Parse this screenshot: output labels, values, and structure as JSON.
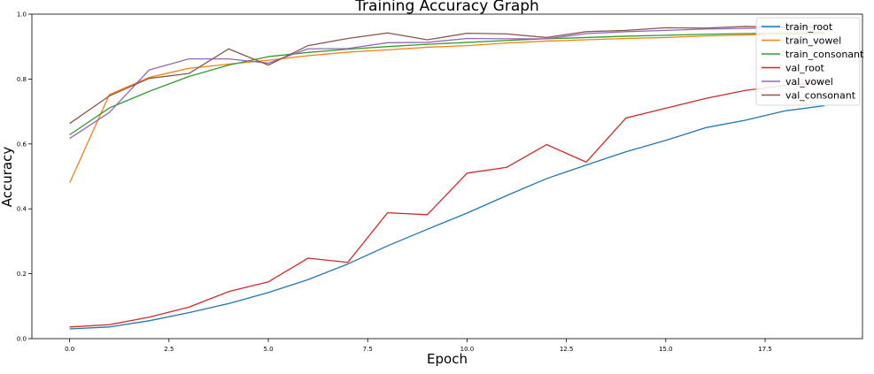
{
  "chart_data": {
    "type": "line",
    "title": "Training Accuracy Graph",
    "xlabel": "Epoch",
    "ylabel": "Accuracy",
    "xlim": [
      -0.95,
      19.95
    ],
    "ylim": [
      0.0,
      1.0
    ],
    "xticks": [
      0.0,
      2.5,
      5.0,
      7.5,
      10.0,
      12.5,
      15.0,
      17.5
    ],
    "xtick_labels": [
      "0.0",
      "2.5",
      "5.0",
      "7.5",
      "10.0",
      "12.5",
      "15.0",
      "17.5"
    ],
    "yticks": [
      0.0,
      0.2,
      0.4,
      0.6,
      0.8,
      1.0
    ],
    "ytick_labels": [
      "0.0",
      "0.2",
      "0.4",
      "0.6",
      "0.8",
      "1.0"
    ],
    "grid": false,
    "legend_position": "top-right",
    "x": [
      0,
      1,
      2,
      3,
      4,
      5,
      6,
      7,
      8,
      9,
      10,
      11,
      12,
      13,
      14,
      15,
      16,
      17,
      18,
      19
    ],
    "series": [
      {
        "name": "train_root",
        "color": "#1f77b4",
        "values": [
          0.03,
          0.036,
          0.055,
          0.08,
          0.108,
          0.142,
          0.182,
          0.23,
          0.286,
          0.337,
          0.387,
          0.441,
          0.493,
          0.535,
          0.576,
          0.611,
          0.65,
          0.673,
          0.702,
          0.718
        ]
      },
      {
        "name": "train_vowel",
        "color": "#ff7f0e",
        "values": [
          0.48,
          0.752,
          0.805,
          0.833,
          0.846,
          0.858,
          0.872,
          0.883,
          0.89,
          0.898,
          0.903,
          0.911,
          0.917,
          0.921,
          0.925,
          0.928,
          0.933,
          0.936,
          0.938,
          0.94
        ]
      },
      {
        "name": "train_consonant",
        "color": "#2ca02c",
        "values": [
          0.628,
          0.711,
          0.762,
          0.808,
          0.843,
          0.869,
          0.882,
          0.892,
          0.9,
          0.907,
          0.913,
          0.919,
          0.924,
          0.928,
          0.932,
          0.935,
          0.938,
          0.94,
          0.942,
          0.943
        ]
      },
      {
        "name": "val_root",
        "color": "#d62728",
        "values": [
          0.036,
          0.043,
          0.066,
          0.097,
          0.145,
          0.175,
          0.248,
          0.235,
          0.388,
          0.382,
          0.51,
          0.528,
          0.598,
          0.544,
          0.68,
          0.71,
          0.74,
          0.765,
          0.78,
          0.79
        ]
      },
      {
        "name": "val_vowel",
        "color": "#9467bd",
        "values": [
          0.617,
          0.697,
          0.828,
          0.862,
          0.862,
          0.849,
          0.893,
          0.894,
          0.912,
          0.913,
          0.925,
          0.924,
          0.924,
          0.94,
          0.946,
          0.95,
          0.954,
          0.956,
          0.958,
          0.959
        ]
      },
      {
        "name": "val_consonant",
        "color": "#8c564b",
        "values": [
          0.663,
          0.748,
          0.802,
          0.817,
          0.893,
          0.843,
          0.903,
          0.925,
          0.942,
          0.921,
          0.941,
          0.939,
          0.928,
          0.946,
          0.95,
          0.958,
          0.957,
          0.962,
          0.96,
          0.962
        ]
      }
    ]
  }
}
